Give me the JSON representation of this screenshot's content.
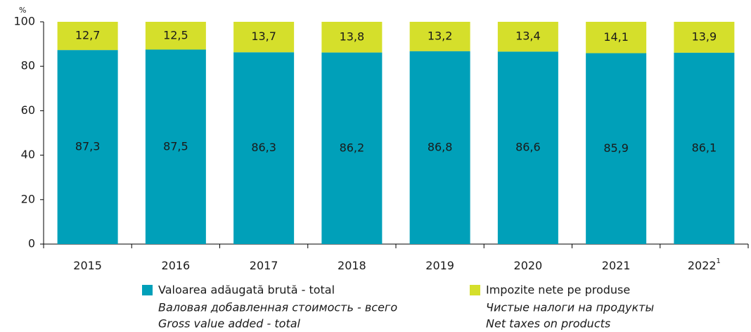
{
  "chart_data": {
    "type": "stacked_bar",
    "y_unit": "%",
    "categories": [
      "2015",
      "2016",
      "2017",
      "2018",
      "2019",
      "2020",
      "2021",
      "2022"
    ],
    "category_superscripts": [
      null,
      null,
      null,
      null,
      null,
      null,
      null,
      "1"
    ],
    "series": [
      {
        "name": "Valoarea adăugată brută - total",
        "name_ru": "Валовая добавленная стоимость - всего",
        "name_en": "Gross value added  - total",
        "color": "#00a0b9",
        "values": [
          87.3,
          87.5,
          86.3,
          86.2,
          86.8,
          86.6,
          85.9,
          86.1
        ],
        "value_labels": [
          "87,3",
          "87,5",
          "86,3",
          "86,2",
          "86,8",
          "86,6",
          "85,9",
          "86,1"
        ]
      },
      {
        "name": "Impozite nete pe produse",
        "name_ru": "Чистые налоги на продукты",
        "name_en": "Net taxes on products",
        "color": "#d5df2b",
        "values": [
          12.7,
          12.5,
          13.7,
          13.8,
          13.2,
          13.4,
          14.1,
          13.9
        ],
        "value_labels": [
          "12,7",
          "12,5",
          "13,7",
          "13,8",
          "13,2",
          "13,4",
          "14,1",
          "13,9"
        ]
      }
    ],
    "ylim": [
      0,
      100
    ],
    "yticks": [
      0,
      20,
      40,
      60,
      80,
      100
    ],
    "grid": false
  }
}
